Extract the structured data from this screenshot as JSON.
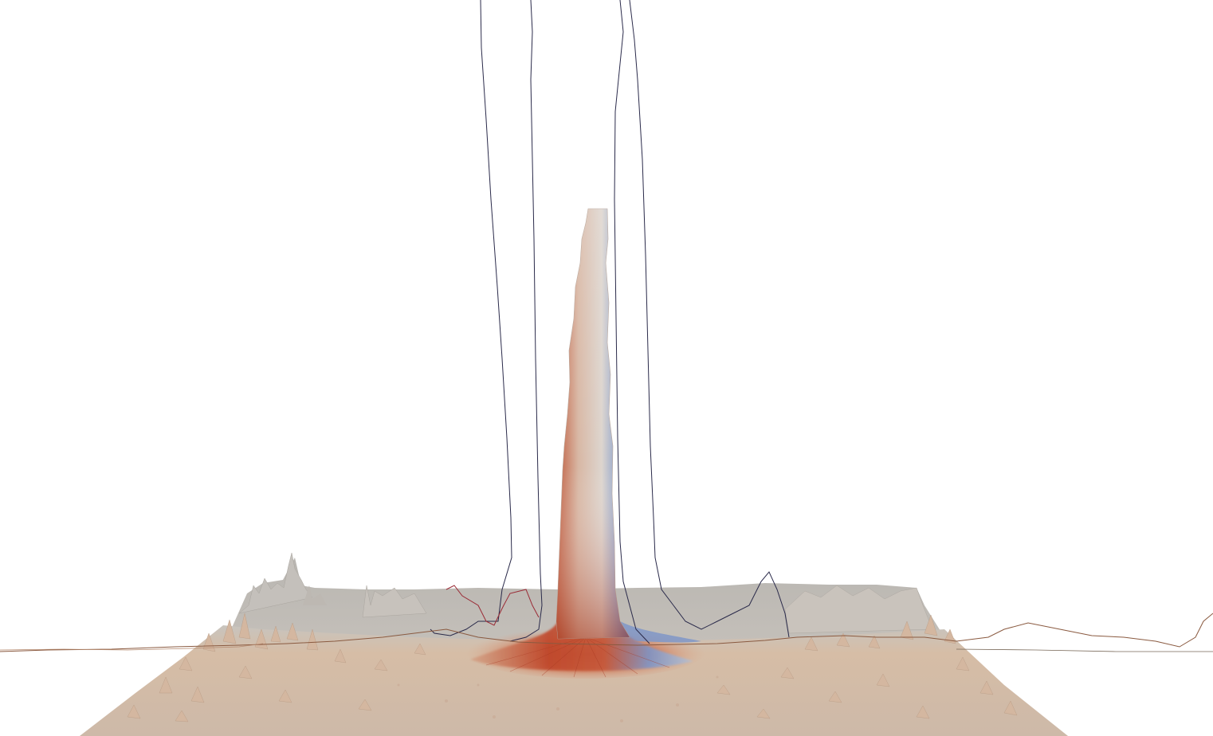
{
  "scene": {
    "kind": "3D surface render",
    "background": "#ffffff",
    "colormap": {
      "low": "#5b7fc4",
      "mid": "#dcd6d0",
      "high": "#c0452a",
      "terrain_light": "#d8c1ac",
      "terrain_grey": "#b7b3ad"
    },
    "line_colors": {
      "profile_dark": "#1c1c3a",
      "profile_red": "#9a2a35",
      "profile_brown": "#8a5a40"
    },
    "objects": {
      "surface": "terrain-surface",
      "peak": "central-spike",
      "profiles": [
        "profile-line-left",
        "profile-line-right",
        "profile-line-horizon"
      ]
    }
  }
}
